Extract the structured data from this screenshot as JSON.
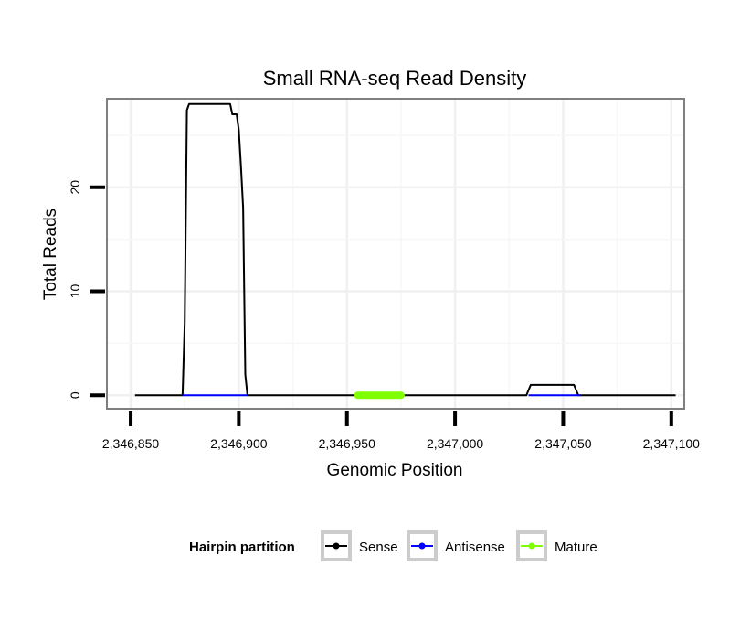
{
  "chart_data": {
    "type": "line",
    "title": "Small RNA-seq Read Density",
    "xlabel": "Genomic Position",
    "ylabel": "Total Reads",
    "xlim": [
      2346839,
      2347106
    ],
    "ylim": [
      -1.3,
      28.5
    ],
    "x_ticks": [
      2346850,
      2346900,
      2346950,
      2347000,
      2347050,
      2347100
    ],
    "x_tick_labels": [
      "2,346,850",
      "2,346,900",
      "2,346,950",
      "2,347,000",
      "2,347,050",
      "2,347,100"
    ],
    "y_ticks": [
      0,
      10,
      20
    ],
    "y_tick_labels": [
      "0",
      "10",
      "20"
    ],
    "grid": true,
    "legend": {
      "title": "Hairpin partition",
      "position": "bottom",
      "entries": [
        "Sense",
        "Antisense",
        "Mature"
      ]
    },
    "series": [
      {
        "name": "Sense",
        "color": "#000000",
        "x": [
          2346852,
          2346874,
          2346875,
          2346876,
          2346877,
          2346878,
          2346887,
          2346896,
          2346897,
          2346899,
          2346900,
          2346901,
          2346902,
          2346903,
          2346904,
          2346905,
          2346906,
          2346907,
          2346908,
          2346909,
          2346910,
          2346911,
          2346912,
          2346913,
          2346914,
          2346915,
          2347033,
          2347035,
          2347045,
          2347055,
          2347057,
          2347102
        ],
        "values": [
          0,
          0,
          7,
          27.4,
          28,
          28,
          28,
          28,
          27,
          27,
          25.5,
          22,
          18,
          2,
          0,
          0,
          0,
          0,
          0,
          0,
          0,
          0,
          0,
          0,
          0,
          0,
          0,
          1,
          1,
          1,
          0,
          0
        ]
      },
      {
        "name": "Antisense",
        "color": "#0000ff",
        "x": [
          2346874,
          2346904
        ],
        "values": [
          0,
          0
        ]
      },
      {
        "name": "Mature",
        "color": "#7fff00",
        "x": [
          2346955,
          2346975
        ],
        "values": [
          0,
          0
        ]
      },
      {
        "name": "Antisense",
        "color": "#0000ff",
        "x": [
          2347034,
          2347058
        ],
        "values": [
          0,
          0
        ]
      }
    ]
  }
}
